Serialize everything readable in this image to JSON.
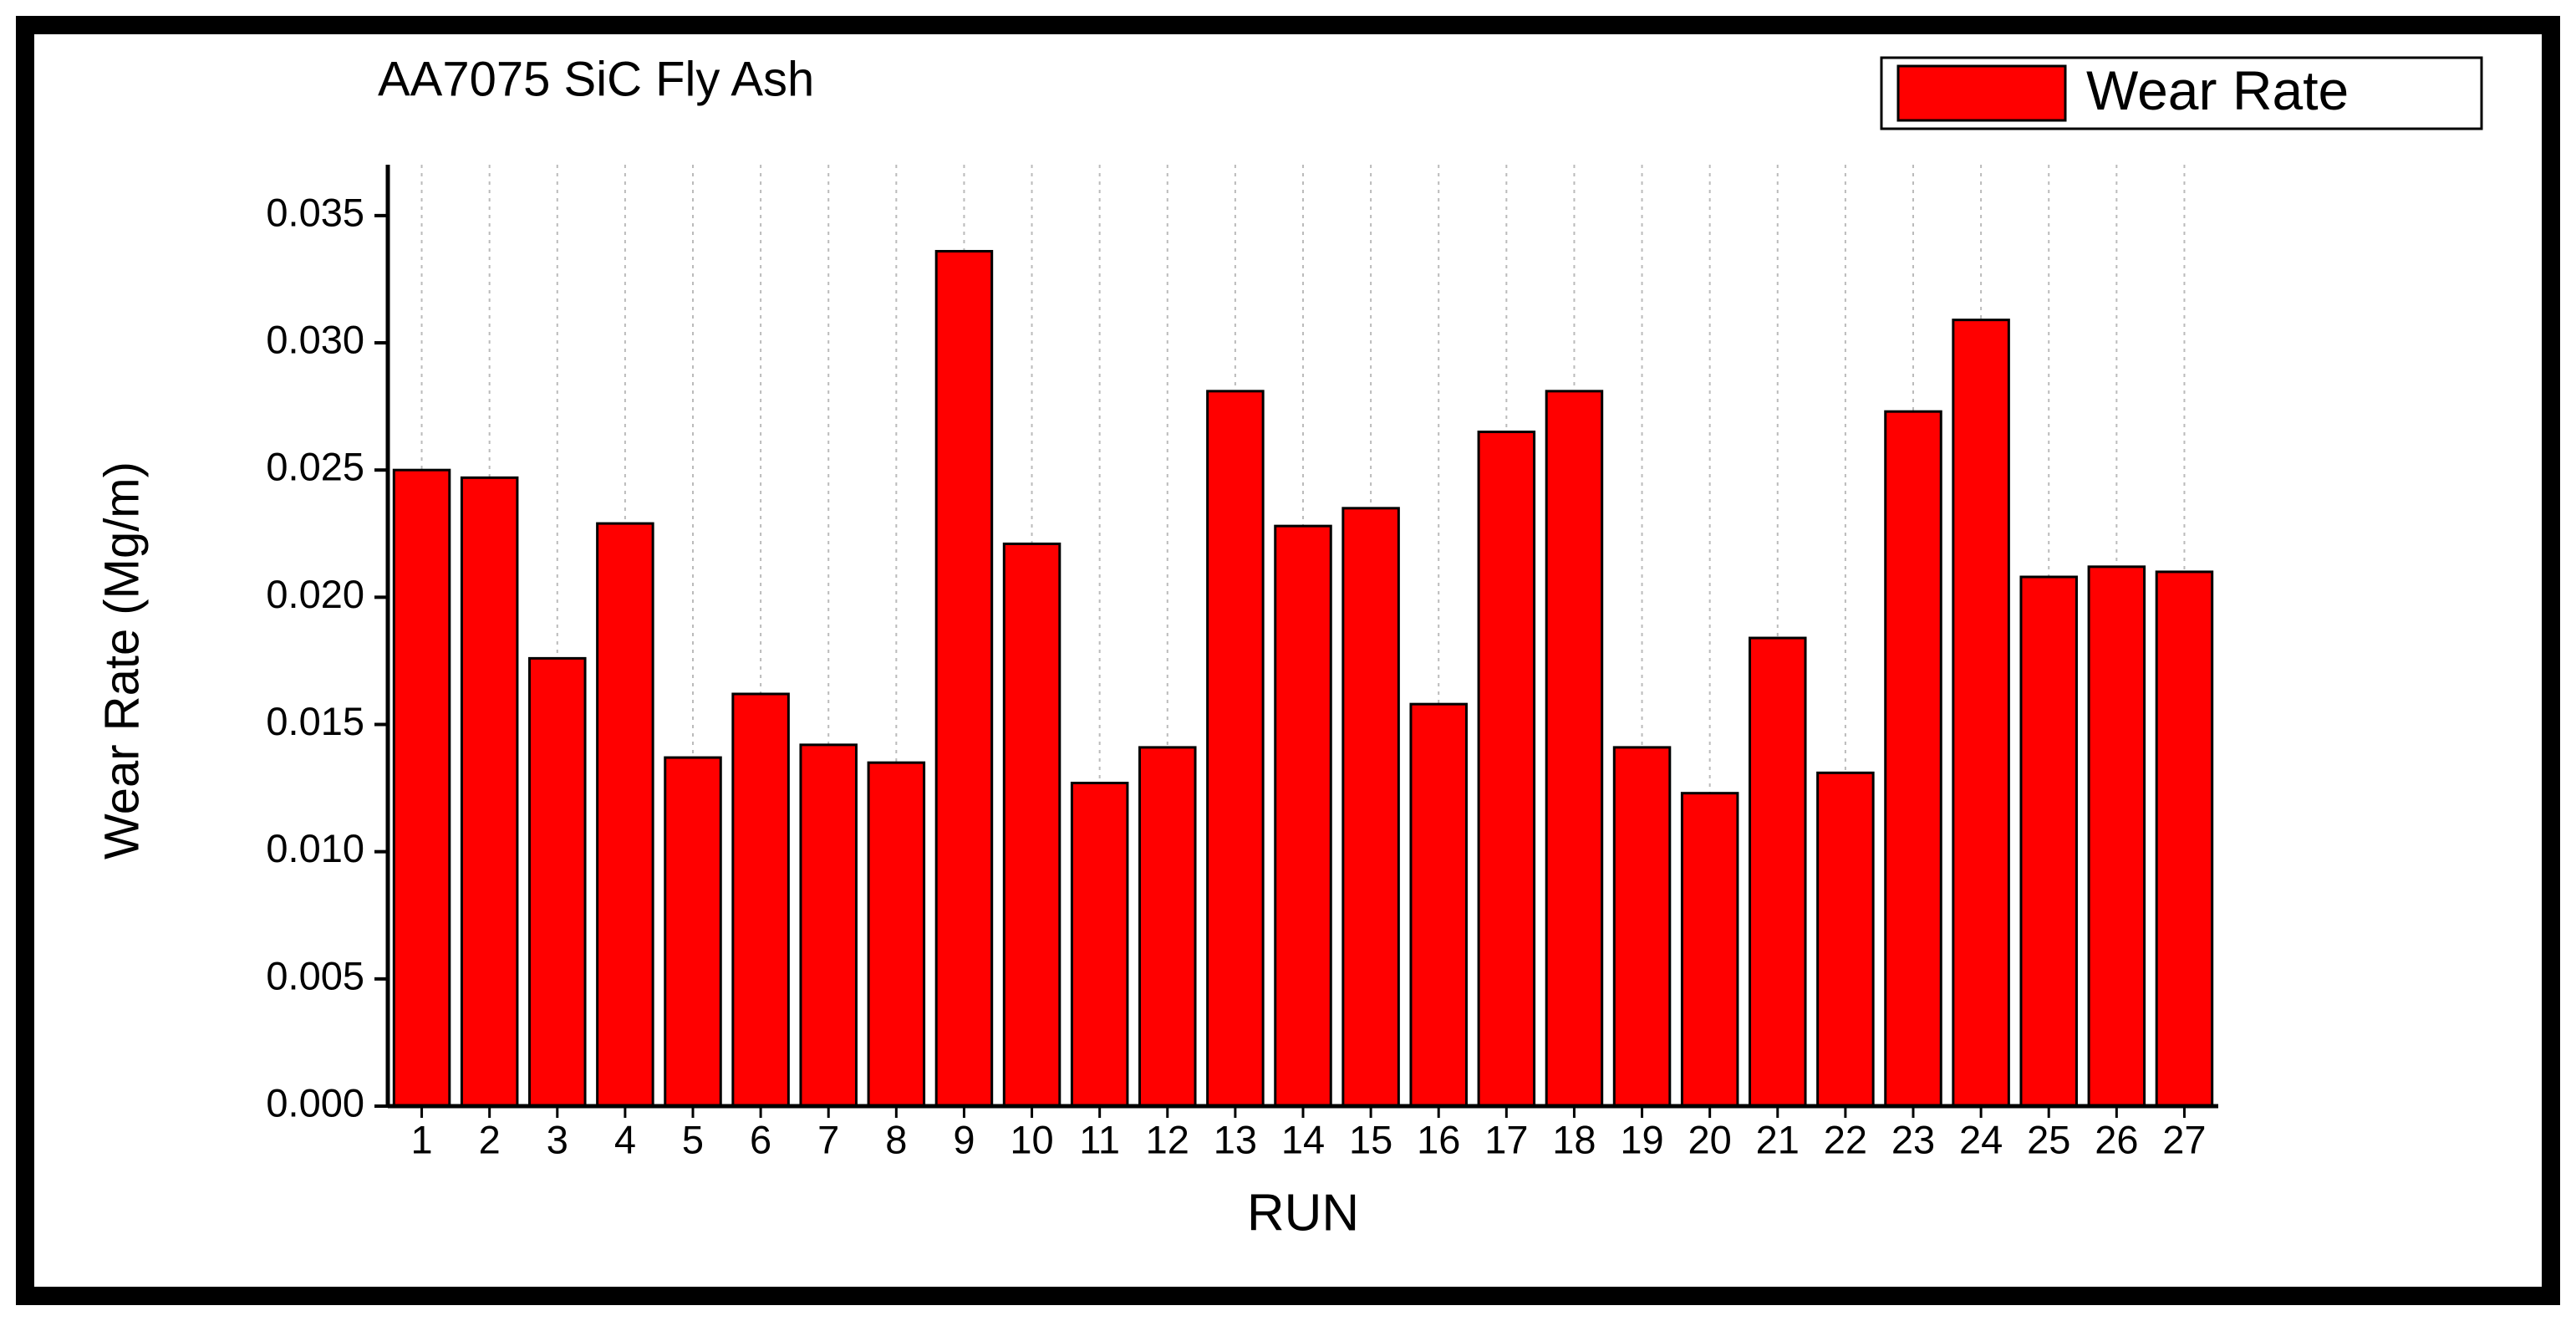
{
  "chart_data": {
    "type": "bar",
    "title": "AA7075 SiC Fly Ash",
    "xlabel": "RUN",
    "ylabel": "Wear Rate (Mg/m)",
    "categories": [
      "1",
      "2",
      "3",
      "4",
      "5",
      "6",
      "7",
      "8",
      "9",
      "10",
      "11",
      "12",
      "13",
      "14",
      "15",
      "16",
      "17",
      "18",
      "19",
      "20",
      "21",
      "22",
      "23",
      "24",
      "25",
      "26",
      "27"
    ],
    "series": [
      {
        "name": "Wear Rate",
        "color": "#ff0000",
        "values": [
          0.025,
          0.0247,
          0.0176,
          0.0229,
          0.0137,
          0.0162,
          0.0142,
          0.0135,
          0.0336,
          0.0221,
          0.0127,
          0.0141,
          0.0281,
          0.0228,
          0.0235,
          0.0158,
          0.0265,
          0.0281,
          0.0141,
          0.0123,
          0.0184,
          0.0131,
          0.0273,
          0.0309,
          0.0208,
          0.0212,
          0.021
        ]
      }
    ],
    "ylim": [
      0,
      0.037
    ],
    "yticks": [
      {
        "value": 0,
        "label": "0.000"
      },
      {
        "value": 0.005,
        "label": "0.005"
      },
      {
        "value": 0.01,
        "label": "0.010"
      },
      {
        "value": 0.015,
        "label": "0.015"
      },
      {
        "value": 0.02,
        "label": "0.020"
      },
      {
        "value": 0.025,
        "label": "0.025"
      },
      {
        "value": 0.03,
        "label": "0.030"
      },
      {
        "value": 0.035,
        "label": "0.035"
      }
    ],
    "grid": true,
    "legend": "top-right"
  }
}
